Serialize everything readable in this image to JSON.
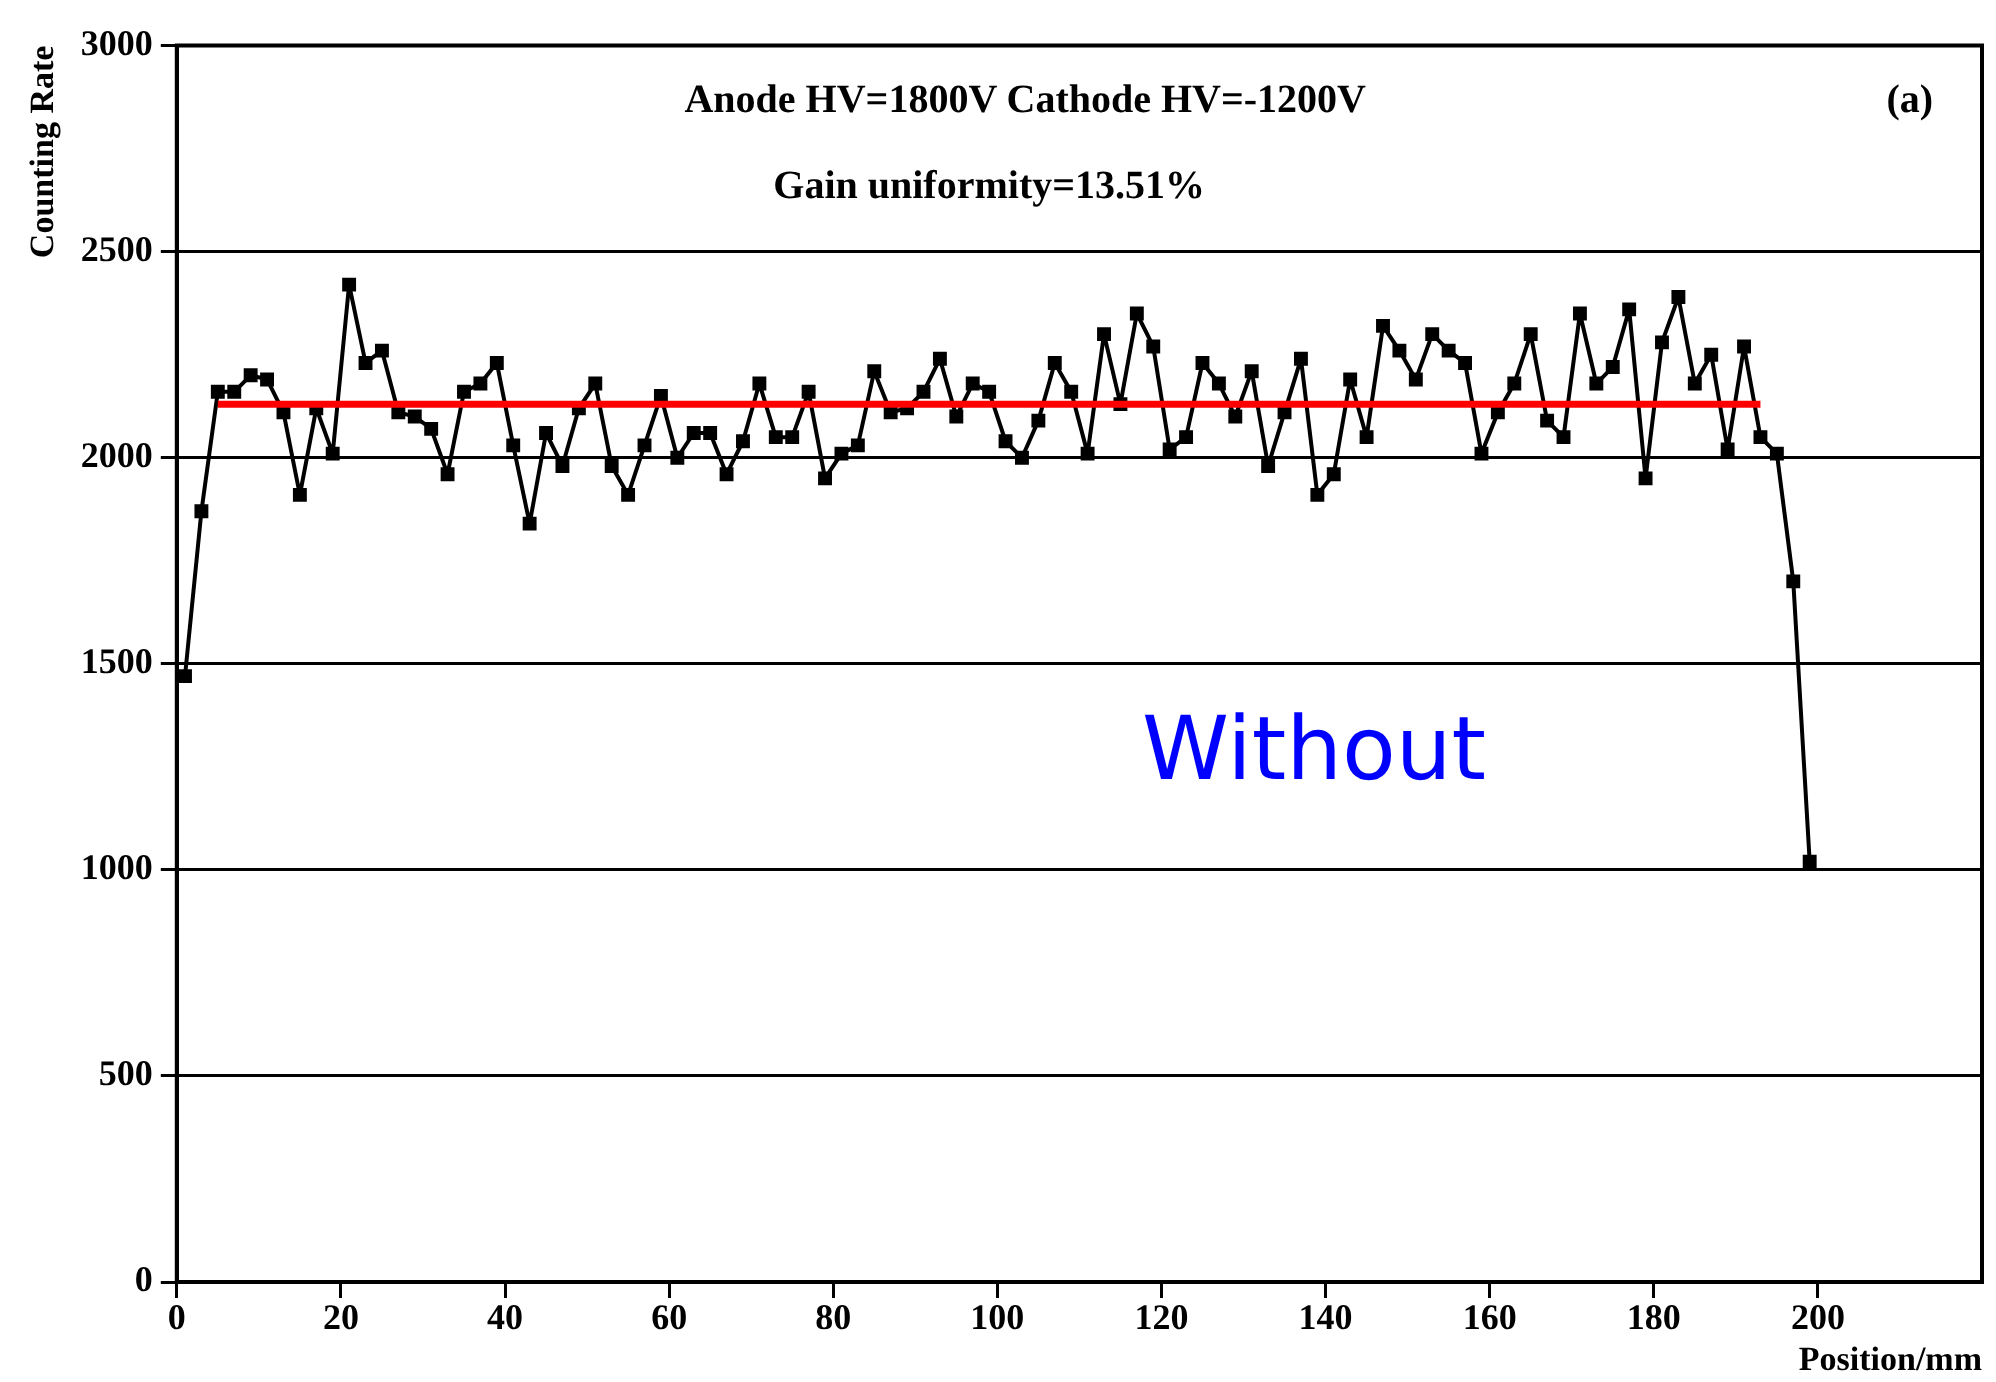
{
  "chart_data": {
    "type": "line",
    "xlabel": "Position/mm",
    "ylabel": "Counting Rate",
    "annotations": [
      "Anode HV=1800V Cathode HV=-1200V",
      "Gain uniformity=13.51%",
      "(a)",
      "Without"
    ],
    "x": [
      1,
      3,
      5,
      7,
      9,
      11,
      13,
      15,
      17,
      19,
      21,
      23,
      25,
      27,
      29,
      31,
      33,
      35,
      37,
      39,
      41,
      43,
      45,
      47,
      49,
      51,
      53,
      55,
      57,
      59,
      61,
      63,
      65,
      67,
      69,
      71,
      73,
      75,
      77,
      79,
      81,
      83,
      85,
      87,
      89,
      91,
      93,
      95,
      97,
      99,
      101,
      103,
      105,
      107,
      109,
      111,
      113,
      115,
      117,
      119,
      121,
      123,
      125,
      127,
      129,
      131,
      133,
      135,
      137,
      139,
      141,
      143,
      145,
      147,
      149,
      151,
      153,
      155,
      157,
      159,
      161,
      163,
      165,
      167,
      169,
      171,
      173,
      175,
      177,
      179,
      181,
      183,
      185,
      187,
      189,
      191,
      193,
      195,
      197,
      199
    ],
    "series": [
      {
        "color": "#000000",
        "marker": "square",
        "line_style": "solid",
        "values": [
          1470,
          1870,
          2160,
          2160,
          2200,
          2190,
          2110,
          1910,
          2120,
          2010,
          2420,
          2230,
          2260,
          2110,
          2100,
          2070,
          1960,
          2160,
          2180,
          2230,
          2030,
          1840,
          2060,
          1980,
          2120,
          2180,
          1980,
          1910,
          2030,
          2150,
          2000,
          2060,
          2060,
          1960,
          2040,
          2180,
          2050,
          2050,
          2160,
          1950,
          2010,
          2030,
          2210,
          2110,
          2120,
          2160,
          2240,
          2100,
          2180,
          2160,
          2040,
          2000,
          2090,
          2230,
          2160,
          2010,
          2300,
          2130,
          2350,
          2270,
          2020,
          2050,
          2230,
          2180,
          2100,
          2210,
          1980,
          2110,
          2240,
          1910,
          1960,
          2190,
          2050,
          2320,
          2260,
          2190,
          2300,
          2260,
          2230,
          2010,
          2110,
          2180,
          2300,
          2090,
          2050,
          2350,
          2180,
          2220,
          2360,
          1950,
          2280,
          2390,
          2180,
          2250,
          2020,
          2270,
          2050,
          2010,
          1700,
          1020
        ]
      },
      {
        "type": "line",
        "color": "#ff0000",
        "marker": "none",
        "line_style": "solid",
        "x": [
          5,
          193
        ],
        "values": [
          2130,
          2130
        ]
      }
    ],
    "xlim": [
      0,
      220
    ],
    "xticks": [
      0,
      20,
      40,
      60,
      80,
      100,
      120,
      140,
      160,
      180,
      200
    ],
    "ylim": [
      0,
      3000
    ],
    "yticks": [
      0,
      500,
      1000,
      1500,
      2000,
      2500,
      3000
    ],
    "grid": "y",
    "legend": false
  }
}
